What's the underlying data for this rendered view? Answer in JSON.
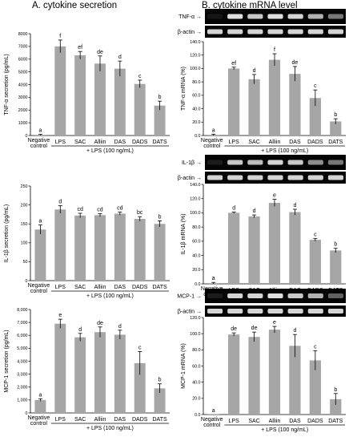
{
  "headers": {
    "a": "A. cytokine secretion",
    "b": "B. cytokine mRNA level"
  },
  "gel": {
    "tnf": "TNF-α",
    "il1b": "IL-1β",
    "mcp1": "MCP-1",
    "actin": "β-actin"
  },
  "chart_data": [
    {
      "id": "tnf_secretion",
      "type": "bar",
      "ylabel": "TNF-α secretion (pg/mL)",
      "ylim": [
        0,
        8000
      ],
      "yticks": [
        "0",
        "1000",
        "2000",
        "3000",
        "4000",
        "5000",
        "6000",
        "7000",
        "8000"
      ],
      "categories": [
        "Negative control",
        "LPS",
        "SAC",
        "Alliin",
        "DAS",
        "DADS",
        "DATS"
      ],
      "values": [
        50,
        7000,
        6300,
        5650,
        5250,
        4050,
        2350
      ],
      "errors": [
        40,
        500,
        300,
        600,
        600,
        300,
        350
      ],
      "labels": [
        "a",
        "f",
        "ef",
        "de",
        "d",
        "c",
        "b"
      ],
      "group_label": "+ LPS (100 ng/mL)"
    },
    {
      "id": "tnf_mrna",
      "type": "bar",
      "ylabel": "TNF-α mRNA (%)",
      "ylim": [
        0,
        140
      ],
      "yticks": [
        "0.0",
        "20.0",
        "40.0",
        "60.0",
        "80.0",
        "100.0",
        "120.0",
        "140.0"
      ],
      "categories": [
        "Negative control",
        "LPS",
        "SAC",
        "Alliin",
        "DAS",
        "DADS",
        "DATS"
      ],
      "values": [
        1,
        100,
        84,
        113,
        92,
        56,
        21
      ],
      "errors": [
        1,
        2,
        7,
        9,
        11,
        12,
        4
      ],
      "labels": [
        "a",
        "ef",
        "d",
        "f",
        "de",
        "c",
        "b"
      ],
      "group_label": "+ LPS (100 ng/mL)"
    },
    {
      "id": "il1b_secretion",
      "type": "bar",
      "ylabel": "IL-1β secretion (pg/mL)",
      "ylim": [
        0,
        250
      ],
      "yticks": [
        "0",
        "50",
        "100",
        "150",
        "200",
        "250"
      ],
      "categories": [
        "Negative control",
        "LPS",
        "SAC",
        "Alliin",
        "DAS",
        "DADS",
        "DATS"
      ],
      "values": [
        135,
        188,
        172,
        173,
        177,
        163,
        150
      ],
      "errors": [
        12,
        10,
        6,
        4,
        4,
        6,
        8
      ],
      "labels": [
        "a",
        "d",
        "cd",
        "cd",
        "cd",
        "bc",
        "b"
      ],
      "group_label": "+ LPS (100 ng/mL)"
    },
    {
      "id": "il1b_mrna",
      "type": "bar",
      "ylabel": "IL-1β mRNA (%)",
      "ylim": [
        0,
        140
      ],
      "yticks": [
        "0.0",
        "20.0",
        "40.0",
        "60.0",
        "80.0",
        "100.0",
        "120.0",
        "140.0"
      ],
      "categories": [
        "Negative control",
        "LPS",
        "SAC",
        "Alliin",
        "DAS",
        "DADS",
        "DATS"
      ],
      "values": [
        1,
        100,
        95,
        114,
        101,
        62,
        47
      ],
      "errors": [
        1,
        1,
        2,
        5,
        4,
        2,
        3
      ],
      "labels": [
        "a",
        "d",
        "d",
        "e",
        "d",
        "c",
        "b"
      ],
      "group_label": "+ LPS (100 ng/mL)"
    },
    {
      "id": "mcp1_secretion",
      "type": "bar",
      "ylabel": "MCP-1 secretion (pg/mL)",
      "ylim": [
        0,
        8000
      ],
      "yticks": [
        "0",
        "1,000",
        "2,000",
        "3,000",
        "4,000",
        "5,000",
        "6,000",
        "7,000",
        "8,000"
      ],
      "categories": [
        "Negative control",
        "LPS",
        "SAC",
        "Alliin",
        "DAS",
        "DADS",
        "DATS"
      ],
      "values": [
        1000,
        6900,
        5850,
        6250,
        6050,
        3850,
        1900
      ],
      "errors": [
        100,
        350,
        300,
        400,
        350,
        900,
        350
      ],
      "labels": [
        "a",
        "e",
        "d",
        "de",
        "d",
        "c",
        "b"
      ],
      "group_label": "+ LPS (100 ng/mL)"
    },
    {
      "id": "mcp1_mrna",
      "type": "bar",
      "ylabel": "MCP-1 mRNA (%)",
      "ylim": [
        0,
        120
      ],
      "yticks": [
        "0.0",
        "20.0",
        "40.0",
        "60.0",
        "80.0",
        "100.0",
        "120.0"
      ],
      "categories": [
        "Negative control",
        "LPS",
        "SAC",
        "Alliin",
        "DAS",
        "DADS",
        "DATS"
      ],
      "values": [
        0,
        99,
        96,
        105,
        85,
        67,
        19
      ],
      "errors": [
        0,
        2,
        6,
        4,
        14,
        12,
        7
      ],
      "labels": [
        "a",
        "de",
        "de",
        "e",
        "d",
        "c",
        "b"
      ],
      "group_label": "+ LPS (100 ng/mL)"
    }
  ]
}
